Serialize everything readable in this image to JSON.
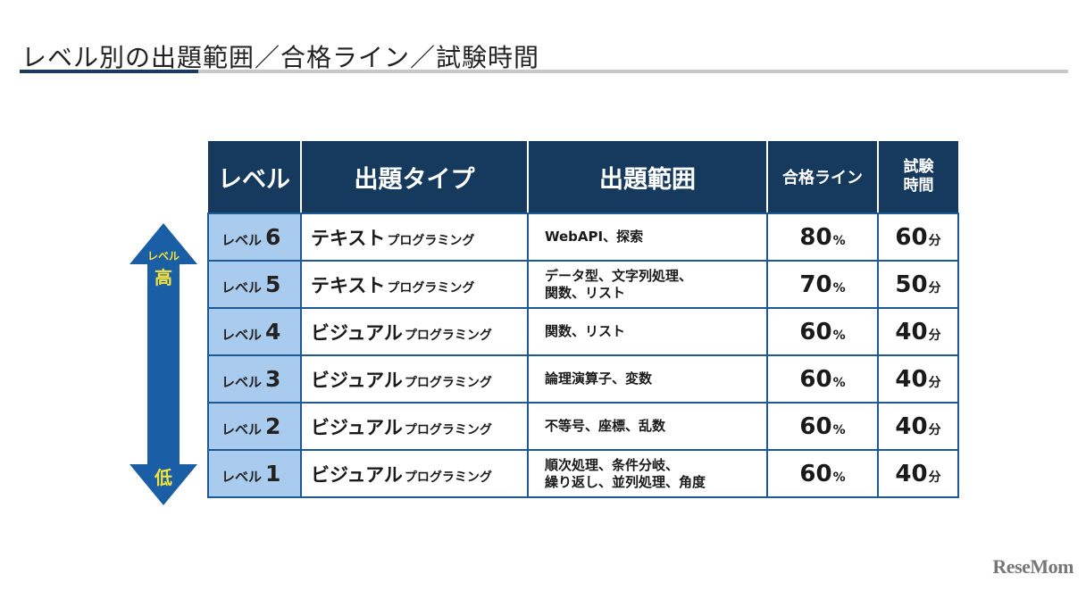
{
  "page": {
    "title": "レベル別の出題範囲／合格ライン／試験時間"
  },
  "arrow": {
    "label_small": "レベル",
    "label_high": "高",
    "label_low": "低",
    "color": "#1a5ea6"
  },
  "table": {
    "headers": {
      "level": "レベル",
      "type": "出題タイプ",
      "scope": "出題範囲",
      "pass": "合格ライン",
      "time_line1": "試験",
      "time_line2": "時間"
    },
    "rows": [
      {
        "level_word": "レベル",
        "level_num": "6",
        "type_main": "テキスト",
        "type_sub": "プログラミング",
        "scope_line1": "WebAPI、探索",
        "scope_line2": "",
        "pass_num": "80",
        "pass_unit": "%",
        "time_num": "60",
        "time_unit": "分"
      },
      {
        "level_word": "レベル",
        "level_num": "5",
        "type_main": "テキスト",
        "type_sub": "プログラミング",
        "scope_line1": "データ型、文字列処理、",
        "scope_line2": "関数、リスト",
        "pass_num": "70",
        "pass_unit": "%",
        "time_num": "50",
        "time_unit": "分"
      },
      {
        "level_word": "レベル",
        "level_num": "4",
        "type_main": "ビジュアル",
        "type_sub": "プログラミング",
        "scope_line1": "関数、リスト",
        "scope_line2": "",
        "pass_num": "60",
        "pass_unit": "%",
        "time_num": "40",
        "time_unit": "分"
      },
      {
        "level_word": "レベル",
        "level_num": "3",
        "type_main": "ビジュアル",
        "type_sub": "プログラミング",
        "scope_line1": "論理演算子、変数",
        "scope_line2": "",
        "pass_num": "60",
        "pass_unit": "%",
        "time_num": "40",
        "time_unit": "分"
      },
      {
        "level_word": "レベル",
        "level_num": "2",
        "type_main": "ビジュアル",
        "type_sub": "プログラミング",
        "scope_line1": "不等号、座標、乱数",
        "scope_line2": "",
        "pass_num": "60",
        "pass_unit": "%",
        "time_num": "40",
        "time_unit": "分"
      },
      {
        "level_word": "レベル",
        "level_num": "1",
        "type_main": "ビジュアル",
        "type_sub": "プログラミング",
        "scope_line1": "順次処理、条件分岐、",
        "scope_line2": "繰り返し、並列処理、角度",
        "pass_num": "60",
        "pass_unit": "%",
        "time_num": "40",
        "time_unit": "分"
      }
    ]
  },
  "logo": {
    "text": "ReseMom"
  }
}
